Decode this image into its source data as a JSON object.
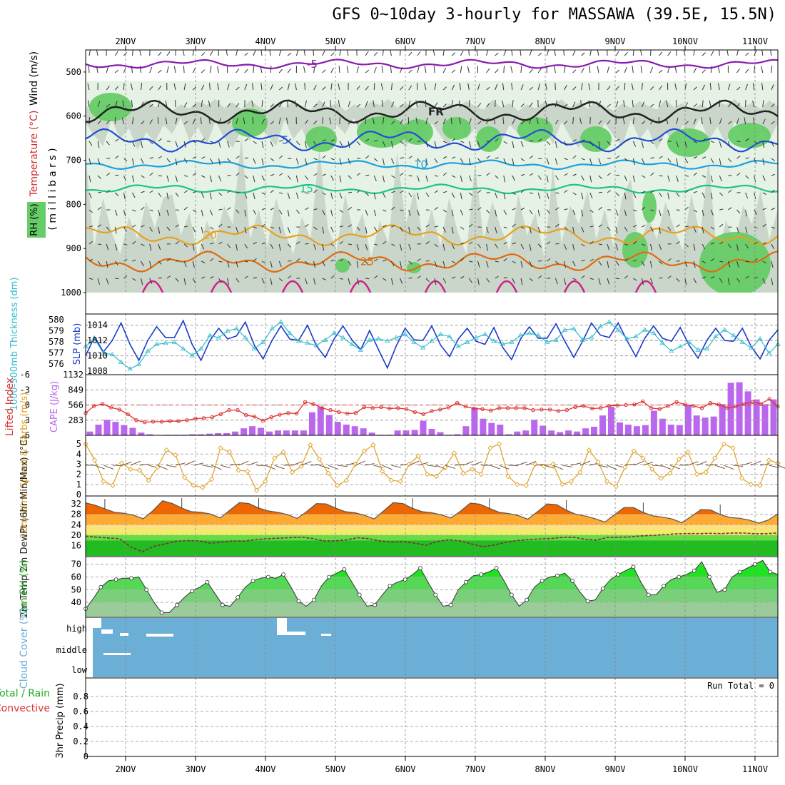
{
  "title": "GFS 0~10day 3-hourly for MASSAWA (39.5E, 15.5N)",
  "colors": {
    "rh_light": "#e6f2e6",
    "rh_mid": "#c9d6c9",
    "rh_dark": "#a7b9a7",
    "rh_green": "#66cc66",
    "temp_purple": "#8a1ab0",
    "temp_blue": "#1f4fd1",
    "temp_cyan": "#1ea0e0",
    "temp_teal": "#1fc28a",
    "temp_orange": "#e8a020",
    "temp_dorange": "#e06a10",
    "temp_magenta": "#d0208a",
    "slp": "#1a3cc8",
    "thickness": "#33bbcc",
    "cape": "#bb66ee",
    "lifted": "#dd3333",
    "wind": "#e0a020",
    "barb": "#7a5a40",
    "cloud": "#6baed6",
    "rh2m": "#22dd22"
  },
  "chart_data": [
    {
      "panel": "upper-air",
      "type": "contour",
      "x_labels": [
        "2NOV",
        "3NOV",
        "4NOV",
        "5NOV",
        "6NOV",
        "7NOV",
        "8NOV",
        "9NOV",
        "10NOV",
        "11NOV"
      ],
      "y_ticks": [
        "500",
        "600",
        "700",
        "800",
        "900",
        "1000"
      ],
      "ylabel_wind": "Wind (m/s)",
      "ylabel_temp": "Temperature (°C)",
      "ylabel_rh": "RH (%)",
      "ylabel_units": "( m i l l i b a r s )",
      "ylim": [
        450,
        1000
      ],
      "isotherms": [
        {
          "label": "-5",
          "level": 482
        },
        {
          "label": "FR",
          "level": 590
        },
        {
          "label": "5",
          "level": 655
        },
        {
          "label": "10",
          "level": 710
        },
        {
          "label": "15",
          "level": 765
        },
        {
          "label": "20",
          "level": 870
        },
        {
          "label": "25",
          "level": 930
        }
      ],
      "rh_labels": [
        "30",
        "50",
        "10"
      ]
    },
    {
      "panel": "slp-thickness",
      "type": "line",
      "ylabel_left": "1000-500mb Thickness (dm)",
      "ylabel_right": "SLP (mb)",
      "thickness_ticks": [
        "580",
        "579",
        "578",
        "577",
        "576"
      ],
      "slp_ticks": [
        "1014",
        "1012",
        "1010",
        "1008"
      ],
      "slp_ylim": [
        1008,
        1015
      ],
      "thickness_ylim": [
        575.6,
        580.4
      ],
      "slp": [
        1010,
        1012.5,
        1010.5,
        1012,
        1014.3,
        1011.5,
        1009.4,
        1012,
        1013.8,
        1012.4,
        1012.4,
        1014.6,
        1011.5,
        1009.4,
        1012,
        1013.6,
        1012.2,
        1012.6,
        1014.4,
        1011.4,
        1009.6,
        1012,
        1013.9,
        1012.2,
        1012,
        1014,
        1011.3,
        1009.8,
        1012.2,
        1013.9,
        1012.1,
        1010.8,
        1013.3,
        1010.8,
        1008.4,
        1011.3,
        1013.6,
        1012.1,
        1012,
        1013.9,
        1011.4,
        1009.9,
        1012.2,
        1013.6,
        1011.9,
        1011.5,
        1013.7,
        1011.1,
        1009.5,
        1012.2,
        1013.8,
        1012.3,
        1012.3,
        1014.2,
        1011.9,
        1009.8,
        1011.9,
        1014.3,
        1012.7,
        1012.4,
        1014.3,
        1012,
        1009.9,
        1012.3,
        1013.9,
        1012.3,
        1011.9,
        1013.7,
        1011.4,
        1009.7,
        1012,
        1013.6,
        1012,
        1011.9,
        1013.6,
        1011.2,
        1009.6,
        1012,
        1013.4
      ],
      "thickness": [
        577.8,
        578.5,
        577.2,
        577.1,
        576.4,
        575.8,
        576.2,
        577.4,
        578.0,
        578.1,
        578.2,
        577.6,
        577.0,
        577.6,
        578.8,
        578.6,
        579.2,
        579.4,
        578.6,
        577.6,
        578.2,
        579.4,
        580.0,
        579.0,
        578.3,
        578.1,
        577.9,
        578.4,
        579.0,
        578.6,
        578.0,
        577.5,
        578.4,
        578.5,
        578.3,
        578.6,
        578.9,
        578.2,
        577.7,
        578.3,
        578.9,
        578.7,
        577.8,
        578.2,
        578.6,
        578.9,
        578.3,
        578.0,
        578.2,
        578.8,
        579.0,
        578.8,
        578.2,
        578.4,
        579.3,
        579.4,
        578.4,
        578.6,
        579.6,
        580.0,
        579.3,
        578.5,
        578.7,
        579.3,
        579.0,
        578.1,
        577.4,
        577.8,
        578.2,
        577.5,
        577.6,
        578.7,
        579.3,
        578.8,
        578.2,
        577.7,
        578.5,
        577.2,
        578.0
      ]
    },
    {
      "panel": "cape-lifted-index",
      "type": "bar",
      "ylabel_left": "Lifted Index",
      "ylabel_right": "CAPE (J/kg)",
      "li_ticks": [
        "-6",
        "-3",
        "0",
        "3",
        "6"
      ],
      "cape_ticks": [
        "1132",
        "849",
        "566",
        "283"
      ],
      "cape_ylim": [
        0,
        1132
      ],
      "li_ylim": [
        -6,
        6
      ],
      "cape": [
        70,
        200,
        290,
        250,
        190,
        140,
        50,
        20,
        0,
        10,
        10,
        10,
        20,
        20,
        30,
        40,
        40,
        70,
        130,
        170,
        140,
        70,
        90,
        90,
        90,
        90,
        430,
        530,
        380,
        250,
        200,
        170,
        130,
        50,
        10,
        10,
        90,
        90,
        100,
        270,
        120,
        60,
        10,
        20,
        170,
        520,
        310,
        230,
        200,
        20,
        70,
        90,
        290,
        180,
        90,
        60,
        90,
        70,
        130,
        160,
        370,
        530,
        240,
        200,
        170,
        190,
        460,
        310,
        200,
        190,
        560,
        370,
        330,
        350,
        580,
        980,
        990,
        820,
        670,
        580,
        670
      ],
      "lifted_index": [
        1.6,
        0.2,
        -0.2,
        0.5,
        0.9,
        1.8,
        3.0,
        3.4,
        3.3,
        3.3,
        3.2,
        3.2,
        3.0,
        2.7,
        2.6,
        2.4,
        1.8,
        1.0,
        1.0,
        2.0,
        2.3,
        3.1,
        2.4,
        1.9,
        1.6,
        1.7,
        -0.6,
        -0.2,
        0.6,
        1.0,
        1.4,
        1.7,
        1.6,
        0.4,
        0.6,
        0.4,
        0.7,
        0.6,
        0.8,
        1.4,
        1.8,
        1.2,
        0.9,
        0.5,
        -0.4,
        0.3,
        0.7,
        0.8,
        1.1,
        0.6,
        0.6,
        0.6,
        0.6,
        1.0,
        0.9,
        0.9,
        1.2,
        1.0,
        0.4,
        0.2,
        0.7,
        0.6,
        0.2,
        0.1,
        0.0,
        -0.1,
        -0.7,
        0.6,
        0.8,
        0.2,
        -0.6,
        -0.1,
        0.2,
        0.6,
        -0.4,
        -0.1,
        0.6,
        0.3,
        -0.2,
        -0.6,
        -0.2,
        -1.2,
        0.3
      ]
    },
    {
      "panel": "10m-wind",
      "type": "line",
      "ylabel": "10m Wind Speed & Barbs (m/s)",
      "y_ticks": [
        "5",
        "4",
        "3",
        "2",
        "1",
        "0"
      ],
      "ylim": [
        0,
        5.5
      ],
      "speed": [
        5,
        3.4,
        1.3,
        0.9,
        3.1,
        2.5,
        2.4,
        1.4,
        2.7,
        4.4,
        3.9,
        1.7,
        0.9,
        0.7,
        1.5,
        4.6,
        4.2,
        2.4,
        2.3,
        0.4,
        1.3,
        3.6,
        4.2,
        2.2,
        2.8,
        4.9,
        3.5,
        2.1,
        0.9,
        1.4,
        3.0,
        4.3,
        4.9,
        2.3,
        1.4,
        1.3,
        3.0,
        3.8,
        2.0,
        1.8,
        2.7,
        4.1,
        2.1,
        2.5,
        2.0,
        4.6,
        5.0,
        1.8,
        1.0,
        0.9,
        3.0,
        2.8,
        3.0,
        1.0,
        1.3,
        2.2,
        4.4,
        3.2,
        1.3,
        0.8,
        2.7,
        4.3,
        3.6,
        2.5,
        1.6,
        2.1,
        3.5,
        4.2,
        2.0,
        2.2,
        3.6,
        5.0,
        4.6,
        1.6,
        1.0,
        0.9,
        3.4,
        3.1
      ]
    },
    {
      "panel": "2m-temp",
      "type": "area",
      "ylabel": "2m Temp 2m DewPt (6hr Min/Max) (°C)",
      "y_ticks": [
        "32",
        "28",
        "24",
        "20",
        "16"
      ],
      "ylim": [
        12,
        34.5
      ],
      "temp": [
        32.4,
        31.5,
        30.1,
        28.8,
        28.4,
        27.6,
        26.3,
        29.4,
        33.2,
        32.2,
        30.4,
        29.0,
        28.8,
        28.1,
        26.6,
        29.6,
        32.5,
        32.1,
        30.4,
        29.3,
        28.8,
        27.9,
        26.4,
        29.1,
        32.1,
        32.0,
        30.4,
        29.0,
        28.6,
        27.6,
        26.2,
        29.3,
        32.5,
        32.1,
        30.3,
        29.0,
        28.6,
        27.8,
        26.6,
        29.2,
        32.3,
        31.9,
        30.3,
        28.8,
        28.3,
        27.5,
        26.1,
        29.0,
        32.0,
        31.7,
        29.6,
        28.0,
        27.3,
        26.3,
        25.0,
        27.8,
        30.6,
        30.6,
        28.7,
        27.4,
        26.9,
        26.2,
        24.8,
        27.2,
        29.8,
        29.7,
        27.9,
        26.8,
        26.5,
        25.8,
        24.6,
        25.8,
        28.2
      ],
      "dewpoint": [
        19.6,
        19.2,
        18.9,
        18.6,
        15.4,
        13.6,
        15.7,
        16.6,
        17.7,
        17.9,
        17.8,
        16.9,
        17.3,
        17.8,
        17.7,
        18.3,
        18.6,
        18.8,
        19.0,
        19.2,
        18.7,
        17.8,
        17.8,
        18.2,
        19.0,
        18.6,
        17.7,
        17.3,
        17.5,
        16.9,
        16.1,
        17.6,
        18.2,
        17.8,
        16.6,
        15.5,
        16.2,
        17.2,
        17.9,
        18.3,
        18.5,
        18.7,
        19.1,
        19.2,
        18.4,
        18.1,
        19.1,
        19.2,
        19.3,
        19.7,
        19.9,
        20.2,
        20.5,
        20.6,
        20.6,
        20.7,
        20.6,
        20.8,
        20.8,
        20.5,
        20.6,
        20.8
      ]
    },
    {
      "panel": "2m-rh",
      "type": "area",
      "ylabel": "2m RH (%)",
      "y_ticks": [
        "70",
        "60",
        "50",
        "40"
      ],
      "ylim": [
        30,
        76
      ],
      "rh": [
        35,
        43,
        52,
        57,
        58,
        59,
        59,
        60,
        50,
        40,
        32,
        32,
        38,
        44,
        49,
        52,
        56,
        47,
        38,
        37,
        44,
        52,
        57,
        59,
        60,
        59,
        62,
        52,
        41,
        37,
        42,
        53,
        60,
        63,
        66,
        56,
        46,
        37,
        38,
        46,
        53,
        56,
        58,
        62,
        67,
        56,
        46,
        37,
        38,
        50,
        56,
        61,
        62,
        64,
        67,
        57,
        46,
        37,
        42,
        52,
        57,
        60,
        61,
        63,
        57,
        48,
        41,
        42,
        51,
        58,
        62,
        65,
        68,
        56,
        46,
        46,
        53,
        58,
        60,
        62,
        65,
        72,
        60,
        48,
        50,
        60,
        64,
        67,
        70,
        73,
        64,
        62
      ]
    },
    {
      "panel": "cloud-cover",
      "type": "area",
      "ylabel": "Cloud Cover (%)",
      "categories": [
        "high",
        "middle",
        "low"
      ]
    },
    {
      "panel": "precip",
      "type": "bar",
      "ylabel_total": "Total / Rain",
      "ylabel_conv": "Convective",
      "ylabel": "3hr Precip (mm)",
      "y_ticks": [
        "0.8",
        "0.6",
        "0.4",
        "0.2",
        "0"
      ],
      "ylim": [
        0,
        0.95
      ],
      "run_total": "Run Total = 0",
      "x_labels": [
        "2NOV",
        "3NOV",
        "4NOV",
        "5NOV",
        "6NOV",
        "7NOV",
        "8NOV",
        "9NOV",
        "10NOV",
        "11NOV"
      ]
    }
  ]
}
